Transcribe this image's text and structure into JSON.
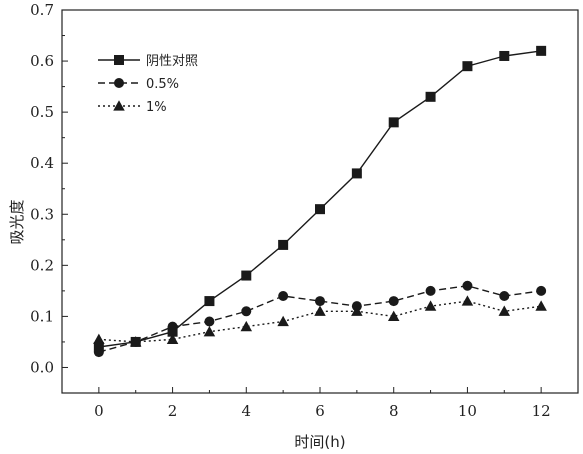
{
  "chart_data": {
    "type": "line",
    "xlabel": "时间(h)",
    "ylabel": "吸光度",
    "xlim": [
      -1,
      13
    ],
    "ylim": [
      -0.05,
      0.7
    ],
    "xticks": [
      0,
      2,
      4,
      6,
      8,
      10,
      12
    ],
    "yticks": [
      0.0,
      0.1,
      0.2,
      0.3,
      0.4,
      0.5,
      0.6,
      0.7
    ],
    "ytick_labels": [
      "0.0",
      "0.1",
      "0.2",
      "0.3",
      "0.4",
      "0.5",
      "0.6",
      "0.7"
    ],
    "x": [
      0,
      1,
      2,
      3,
      4,
      5,
      6,
      7,
      8,
      9,
      10,
      11,
      12
    ],
    "legend_position": "top-left",
    "grid": false,
    "series": [
      {
        "name": "阴性对照",
        "marker": "square",
        "line_style": "solid",
        "values": [
          0.04,
          0.05,
          0.07,
          0.13,
          0.18,
          0.24,
          0.31,
          0.38,
          0.48,
          0.53,
          0.59,
          0.61,
          0.62
        ]
      },
      {
        "name": "0.5%",
        "marker": "circle",
        "line_style": "dashed",
        "values": [
          0.03,
          0.05,
          0.08,
          0.09,
          0.11,
          0.14,
          0.13,
          0.12,
          0.13,
          0.15,
          0.16,
          0.14,
          0.15
        ]
      },
      {
        "name": "1%",
        "marker": "triangle",
        "line_style": "dotted",
        "values": [
          0.055,
          0.05,
          0.055,
          0.07,
          0.08,
          0.09,
          0.11,
          0.11,
          0.1,
          0.12,
          0.13,
          0.11,
          0.12
        ]
      }
    ]
  }
}
